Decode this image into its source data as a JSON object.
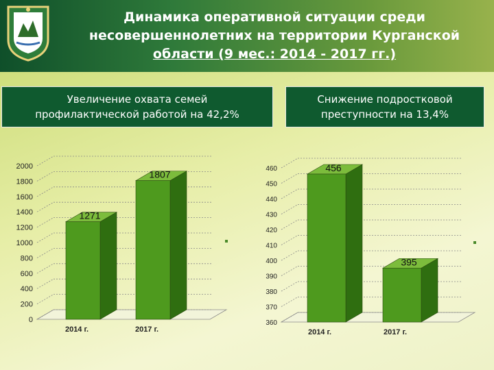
{
  "header": {
    "title_lines": [
      "Динамика оперативной ситуации среди",
      "несовершеннолетних на территории Курганской",
      "области (9 мес.: 2014 - 2017 гг.)"
    ]
  },
  "captions": {
    "left": [
      "Увеличение охвата семей",
      "профилактической работой на 42,2%"
    ],
    "right": [
      "Снижение подростковой",
      "преступности на 13,4%"
    ]
  },
  "colors": {
    "bar_front": "#4e9a1e",
    "bar_side": "#2f6e10",
    "bar_top": "#7cbc3c",
    "header_dark": "#0f4f2a",
    "caption_bg": "#0f5a2f"
  },
  "chart_data": [
    {
      "type": "bar",
      "categories": [
        "2014 г.",
        "2017 г."
      ],
      "values": [
        1271,
        1807
      ],
      "data_labels": [
        "1271",
        "1807"
      ],
      "ylim": [
        0,
        2000
      ],
      "yticks": [
        "0",
        "200",
        "400",
        "600",
        "800",
        "1000",
        "1200",
        "1400",
        "1600",
        "1800",
        "2000"
      ],
      "grid": true
    },
    {
      "type": "bar",
      "categories": [
        "2014 г.",
        "2017 г."
      ],
      "values": [
        456,
        395
      ],
      "data_labels": [
        "456",
        "395"
      ],
      "ylim": [
        360,
        460
      ],
      "yticks": [
        "360",
        "370",
        "380",
        "390",
        "400",
        "410",
        "420",
        "430",
        "440",
        "450",
        "460"
      ],
      "grid": true
    }
  ]
}
